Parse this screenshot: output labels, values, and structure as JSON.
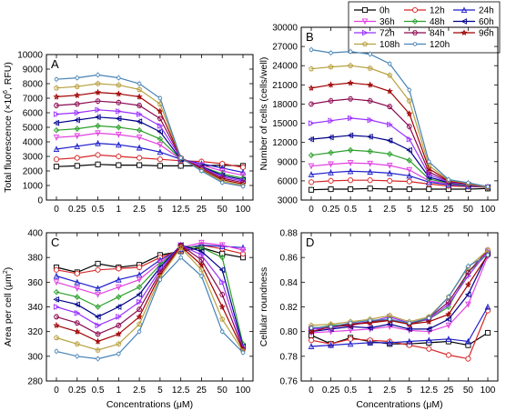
{
  "legend": {
    "entries": [
      {
        "label": "0h",
        "color": "#000000",
        "marker": "square-open"
      },
      {
        "label": "12h",
        "color": "#d62728",
        "marker": "circle-open"
      },
      {
        "label": "24h",
        "color": "#1f1fcc",
        "marker": "triangle-up"
      },
      {
        "label": "36h",
        "color": "#e040e0",
        "marker": "triangle-down"
      },
      {
        "label": "48h",
        "color": "#2ca02c",
        "marker": "diamond"
      },
      {
        "label": "60h",
        "color": "#00008b",
        "marker": "triangle-left"
      },
      {
        "label": "72h",
        "color": "#9b30ff",
        "marker": "triangle-right"
      },
      {
        "label": "84h",
        "color": "#8b0a50",
        "marker": "hexagon"
      },
      {
        "label": "96h",
        "color": "#a00000",
        "marker": "star"
      },
      {
        "label": "108h",
        "color": "#b8a040",
        "marker": "pentagon"
      },
      {
        "label": "120h",
        "color": "#4682b4",
        "marker": "circle-small"
      }
    ]
  },
  "chart_data": [
    {
      "panel": "A",
      "type": "line",
      "ylabel_pre": "Total fluorescence (×10",
      "ylabel_sup": "6",
      "ylabel_post": ", RFU)",
      "xlabel": "",
      "categories": [
        "0",
        "0.25",
        "0.5",
        "1",
        "2.5",
        "5",
        "12.5",
        "25",
        "50",
        "100"
      ],
      "ylim": [
        0,
        10000
      ],
      "yticks": [
        0,
        1000,
        2000,
        3000,
        4000,
        5000,
        6000,
        7000,
        8000,
        9000,
        10000
      ],
      "series": [
        {
          "name": "0h",
          "values": [
            2300,
            2350,
            2450,
            2400,
            2400,
            2350,
            2350,
            2350,
            2400,
            2350
          ]
        },
        {
          "name": "12h",
          "values": [
            2800,
            2900,
            3100,
            3000,
            2900,
            2800,
            2700,
            2650,
            2500,
            2250
          ]
        },
        {
          "name": "24h",
          "values": [
            3500,
            3700,
            3900,
            3800,
            3600,
            3300,
            2800,
            2500,
            2200,
            1900
          ]
        },
        {
          "name": "36h",
          "values": [
            4300,
            4400,
            4600,
            4500,
            4300,
            3800,
            2800,
            2400,
            2000,
            1700
          ]
        },
        {
          "name": "48h",
          "values": [
            4800,
            4900,
            5100,
            5000,
            4800,
            4200,
            2800,
            2300,
            1800,
            1500
          ]
        },
        {
          "name": "60h",
          "values": [
            5300,
            5500,
            5700,
            5600,
            5400,
            4700,
            2800,
            2300,
            1700,
            1400
          ]
        },
        {
          "name": "72h",
          "values": [
            5900,
            6000,
            6200,
            6100,
            5900,
            5100,
            2900,
            2250,
            1600,
            1300
          ]
        },
        {
          "name": "84h",
          "values": [
            6500,
            6600,
            6800,
            6700,
            6500,
            5600,
            2900,
            2200,
            1500,
            1200
          ]
        },
        {
          "name": "96h",
          "values": [
            7100,
            7200,
            7400,
            7300,
            7100,
            6100,
            2900,
            2100,
            1400,
            1100
          ]
        },
        {
          "name": "108h",
          "values": [
            7700,
            7800,
            8000,
            7900,
            7600,
            6600,
            2900,
            2050,
            1300,
            1000
          ]
        },
        {
          "name": "120h",
          "values": [
            8300,
            8400,
            8600,
            8400,
            8000,
            7000,
            2900,
            2000,
            1200,
            950
          ]
        }
      ]
    },
    {
      "panel": "B",
      "type": "line",
      "ylabel": "Number of cells (cells/well)",
      "xlabel": "",
      "categories": [
        "0",
        "0.25",
        "0.5",
        "1",
        "2.5",
        "5",
        "12.5",
        "25",
        "50",
        "100"
      ],
      "ylim": [
        3000,
        30000
      ],
      "yticks": [
        3000,
        6000,
        9000,
        12000,
        15000,
        18000,
        21000,
        24000,
        27000,
        30000
      ],
      "series": [
        {
          "name": "0h",
          "values": [
            4600,
            4700,
            4700,
            4800,
            4700,
            4700,
            4700,
            4700,
            4700,
            4800
          ]
        },
        {
          "name": "12h",
          "values": [
            5800,
            6000,
            6100,
            6100,
            6000,
            5900,
            5500,
            5200,
            5100,
            5000
          ]
        },
        {
          "name": "24h",
          "values": [
            7000,
            7300,
            7500,
            7400,
            7200,
            6800,
            5800,
            5400,
            5200,
            5000
          ]
        },
        {
          "name": "36h",
          "values": [
            8300,
            8600,
            8800,
            8700,
            8400,
            7700,
            6000,
            5500,
            5300,
            5000
          ]
        },
        {
          "name": "48h",
          "values": [
            10000,
            10400,
            10800,
            10600,
            10200,
            9200,
            6300,
            5600,
            5300,
            5000
          ]
        },
        {
          "name": "60h",
          "values": [
            12500,
            12800,
            13100,
            12900,
            12300,
            10800,
            6600,
            5700,
            5400,
            5000
          ]
        },
        {
          "name": "72h",
          "values": [
            15000,
            15400,
            15800,
            15500,
            14800,
            12500,
            7000,
            5800,
            5400,
            5000
          ]
        },
        {
          "name": "84h",
          "values": [
            18000,
            18500,
            18800,
            18500,
            17600,
            14500,
            7400,
            5900,
            5500,
            5000
          ]
        },
        {
          "name": "96h",
          "values": [
            20500,
            21000,
            21300,
            21000,
            20000,
            16500,
            7900,
            6000,
            5500,
            5000
          ]
        },
        {
          "name": "108h",
          "values": [
            23500,
            23800,
            24000,
            23600,
            22500,
            18500,
            8400,
            6100,
            5600,
            5000
          ]
        },
        {
          "name": "120h",
          "values": [
            26500,
            26000,
            26200,
            25800,
            24300,
            20200,
            9000,
            6200,
            5700,
            5100
          ]
        }
      ]
    },
    {
      "panel": "C",
      "type": "line",
      "ylabel_pre": "Area per cell (μm",
      "ylabel_sup": "2",
      "ylabel_post": ")",
      "xlabel": "Concentrations (μM)",
      "categories": [
        "0",
        "0.25",
        "0.5",
        "1",
        "2.5",
        "5",
        "12.5",
        "25",
        "50",
        "100"
      ],
      "ylim": [
        280,
        400
      ],
      "yticks": [
        280,
        300,
        320,
        340,
        360,
        380,
        400
      ],
      "series": [
        {
          "name": "0h",
          "values": [
            372,
            368,
            375,
            372,
            374,
            382,
            385,
            388,
            383,
            380
          ]
        },
        {
          "name": "12h",
          "values": [
            370,
            367,
            370,
            371,
            372,
            380,
            386,
            390,
            387,
            383
          ]
        },
        {
          "name": "24h",
          "values": [
            365,
            360,
            355,
            362,
            366,
            378,
            387,
            390,
            389,
            388
          ]
        },
        {
          "name": "36h",
          "values": [
            360,
            355,
            350,
            356,
            362,
            376,
            388,
            392,
            390,
            386
          ]
        },
        {
          "name": "48h",
          "values": [
            352,
            348,
            340,
            348,
            356,
            374,
            389,
            388,
            380,
            310
          ]
        },
        {
          "name": "60h",
          "values": [
            346,
            342,
            332,
            340,
            350,
            372,
            390,
            385,
            370,
            308
          ]
        },
        {
          "name": "72h",
          "values": [
            340,
            335,
            325,
            332,
            344,
            370,
            390,
            382,
            360,
            307
          ]
        },
        {
          "name": "84h",
          "values": [
            332,
            327,
            318,
            325,
            338,
            368,
            390,
            378,
            350,
            306
          ]
        },
        {
          "name": "96h",
          "values": [
            325,
            320,
            312,
            318,
            332,
            366,
            389,
            374,
            340,
            305
          ]
        },
        {
          "name": "108h",
          "values": [
            315,
            310,
            305,
            310,
            326,
            364,
            388,
            370,
            330,
            304
          ]
        },
        {
          "name": "120h",
          "values": [
            304,
            300,
            298,
            302,
            320,
            362,
            380,
            365,
            320,
            303
          ]
        }
      ]
    },
    {
      "panel": "D",
      "type": "line",
      "ylabel": "Cellular roundness",
      "xlabel": "Concentrations (μM)",
      "categories": [
        "0",
        "0.25",
        "0.5",
        "1",
        "2.5",
        "5",
        "12.5",
        "25",
        "50",
        "100"
      ],
      "ylim": [
        0.76,
        0.88
      ],
      "yticks": [
        0.76,
        0.78,
        0.8,
        0.82,
        0.84,
        0.86,
        0.88
      ],
      "ytick_labels": [
        "0.76",
        "0.78",
        "0.80",
        "0.82",
        "0.84",
        "0.86",
        "0.88"
      ],
      "series": [
        {
          "name": "0h",
          "values": [
            0.797,
            0.79,
            0.795,
            0.792,
            0.79,
            0.79,
            0.791,
            0.792,
            0.789,
            0.799
          ]
        },
        {
          "name": "12h",
          "values": [
            0.793,
            0.79,
            0.794,
            0.793,
            0.792,
            0.789,
            0.786,
            0.781,
            0.778,
            0.817
          ]
        },
        {
          "name": "24h",
          "values": [
            0.788,
            0.789,
            0.79,
            0.791,
            0.791,
            0.792,
            0.793,
            0.794,
            0.792,
            0.82
          ]
        },
        {
          "name": "36h",
          "values": [
            0.799,
            0.8,
            0.801,
            0.802,
            0.804,
            0.801,
            0.8,
            0.805,
            0.822,
            0.861
          ]
        },
        {
          "name": "48h",
          "values": [
            0.802,
            0.805,
            0.806,
            0.808,
            0.809,
            0.806,
            0.81,
            0.82,
            0.848,
            0.863
          ]
        },
        {
          "name": "60h",
          "values": [
            0.8,
            0.802,
            0.804,
            0.803,
            0.806,
            0.802,
            0.802,
            0.81,
            0.83,
            0.863
          ]
        },
        {
          "name": "72h",
          "values": [
            0.802,
            0.803,
            0.806,
            0.808,
            0.812,
            0.807,
            0.81,
            0.822,
            0.845,
            0.865
          ]
        },
        {
          "name": "84h",
          "values": [
            0.803,
            0.804,
            0.805,
            0.808,
            0.81,
            0.806,
            0.811,
            0.824,
            0.848,
            0.866
          ]
        },
        {
          "name": "96h",
          "values": [
            0.8,
            0.804,
            0.806,
            0.807,
            0.809,
            0.806,
            0.808,
            0.814,
            0.838,
            0.862
          ]
        },
        {
          "name": "108h",
          "values": [
            0.805,
            0.806,
            0.808,
            0.81,
            0.813,
            0.808,
            0.812,
            0.828,
            0.852,
            0.866
          ]
        },
        {
          "name": "120h",
          "values": [
            0.803,
            0.804,
            0.807,
            0.809,
            0.81,
            0.807,
            0.811,
            0.828,
            0.853,
            0.862
          ]
        }
      ]
    }
  ]
}
